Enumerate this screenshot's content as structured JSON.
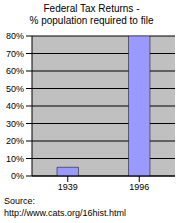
{
  "chart_data": {
    "type": "bar",
    "title": "Federal Tax Returns -",
    "subtitle": "% population required to file",
    "categories": [
      "1939",
      "1996"
    ],
    "values": [
      5,
      80
    ],
    "color": "#9999ff",
    "ylim": [
      0,
      80
    ],
    "yticks": [
      {
        "value": 0,
        "label": "0%"
      },
      {
        "value": 10,
        "label": "10%"
      },
      {
        "value": 20,
        "label": "20%"
      },
      {
        "value": 30,
        "label": "30%"
      },
      {
        "value": 40,
        "label": "40%"
      },
      {
        "value": 50,
        "label": "50%"
      },
      {
        "value": 60,
        "label": "60%"
      },
      {
        "value": 70,
        "label": "70%"
      },
      {
        "value": 80,
        "label": "80%"
      }
    ],
    "grid": true,
    "annotations": [
      "Source:",
      "http://www.cats.org/16hist.html"
    ]
  }
}
